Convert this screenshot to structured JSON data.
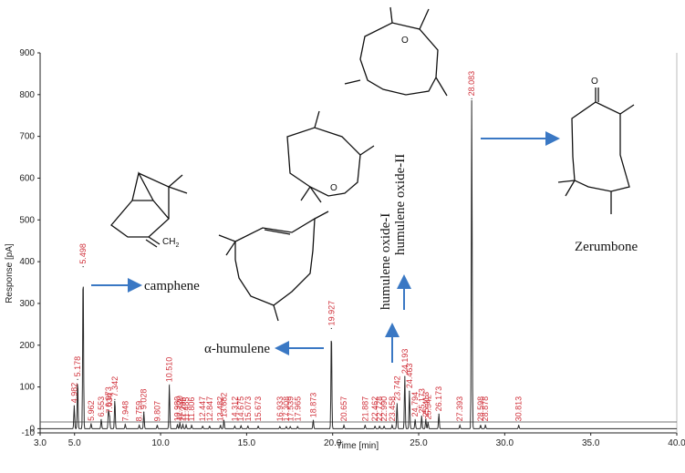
{
  "chart_data": {
    "type": "line",
    "xlabel": "Time [min]",
    "ylabel": "Response [pA]",
    "xlim": [
      3.0,
      40.0
    ],
    "ylim": [
      -10,
      900
    ],
    "x_ticks": [
      "3.0",
      "5.0",
      "10.0",
      "15.0",
      "20.0",
      "25.0",
      "30.0",
      "35.0",
      "40.0"
    ],
    "y_ticks": [
      "-10",
      "0",
      "100",
      "200",
      "300",
      "400",
      "500",
      "600",
      "700",
      "800",
      "900"
    ],
    "baseline": 0,
    "peaks": [
      {
        "t": "4.982",
        "rt": 4.982,
        "h": 55
      },
      {
        "t": "5.178",
        "rt": 5.178,
        "h": 118
      },
      {
        "t": "5.498",
        "rt": 5.498,
        "h": 388
      },
      {
        "t": "5.962",
        "rt": 5.962,
        "h": 12
      },
      {
        "t": "6.553",
        "rt": 6.553,
        "h": 22
      },
      {
        "t": "6.973",
        "rt": 6.973,
        "h": 45
      },
      {
        "t": "7.034",
        "rt": 7.034,
        "h": 30
      },
      {
        "t": "7.342",
        "rt": 7.342,
        "h": 70
      },
      {
        "t": "7.948",
        "rt": 7.948,
        "h": 10
      },
      {
        "t": "8.759",
        "rt": 8.759,
        "h": 8
      },
      {
        "t": "9.028",
        "rt": 9.028,
        "h": 40
      },
      {
        "t": "9.807",
        "rt": 9.807,
        "h": 8
      },
      {
        "t": "10.510",
        "rt": 10.51,
        "h": 105
      },
      {
        "t": "10.980",
        "rt": 10.98,
        "h": 10
      },
      {
        "t": "11.120",
        "rt": 11.12,
        "h": 14
      },
      {
        "t": "11.295",
        "rt": 11.295,
        "h": 10
      },
      {
        "t": "11.485",
        "rt": 11.485,
        "h": 9
      },
      {
        "t": "11.806",
        "rt": 11.806,
        "h": 8
      },
      {
        "t": "12.447",
        "rt": 12.447,
        "h": 6
      },
      {
        "t": "12.847",
        "rt": 12.847,
        "h": 6
      },
      {
        "t": "13.482",
        "rt": 13.482,
        "h": 8
      },
      {
        "t": "13.682",
        "rt": 13.682,
        "h": 20
      },
      {
        "t": "14.312",
        "rt": 14.312,
        "h": 6
      },
      {
        "t": "14.675",
        "rt": 14.675,
        "h": 7
      },
      {
        "t": "15.073",
        "rt": 15.073,
        "h": 6
      },
      {
        "t": "15.673",
        "rt": 15.673,
        "h": 6
      },
      {
        "t": "16.933",
        "rt": 16.933,
        "h": 5
      },
      {
        "t": "17.308",
        "rt": 17.308,
        "h": 5
      },
      {
        "t": "17.539",
        "rt": 17.539,
        "h": 5
      },
      {
        "t": "17.965",
        "rt": 17.965,
        "h": 5
      },
      {
        "t": "18.873",
        "rt": 18.873,
        "h": 20
      },
      {
        "t": "19.927",
        "rt": 19.927,
        "h": 240
      },
      {
        "t": "20.657",
        "rt": 20.657,
        "h": 8
      },
      {
        "t": "21.887",
        "rt": 21.887,
        "h": 8
      },
      {
        "t": "22.462",
        "rt": 22.462,
        "h": 6
      },
      {
        "t": "22.728",
        "rt": 22.728,
        "h": 6
      },
      {
        "t": "22.990",
        "rt": 22.99,
        "h": 6
      },
      {
        "t": "23.458",
        "rt": 23.458,
        "h": 8
      },
      {
        "t": "23.742",
        "rt": 23.742,
        "h": 60
      },
      {
        "t": "24.193",
        "rt": 24.193,
        "h": 125
      },
      {
        "t": "24.463",
        "rt": 24.463,
        "h": 90
      },
      {
        "t": "24.794",
        "rt": 24.794,
        "h": 22
      },
      {
        "t": "25.173",
        "rt": 25.173,
        "h": 30
      },
      {
        "t": "25.413",
        "rt": 25.413,
        "h": 22
      },
      {
        "t": "25.542",
        "rt": 25.542,
        "h": 15
      },
      {
        "t": "26.173",
        "rt": 26.173,
        "h": 35
      },
      {
        "t": "27.393",
        "rt": 27.393,
        "h": 8
      },
      {
        "t": "28.083",
        "rt": 28.083,
        "h": 790
      },
      {
        "t": "28.598",
        "rt": 28.598,
        "h": 8
      },
      {
        "t": "28.878",
        "rt": 28.878,
        "h": 8
      },
      {
        "t": "30.813",
        "rt": 30.813,
        "h": 8
      }
    ],
    "annotations": [
      {
        "id": "camphene",
        "text": "camphene"
      },
      {
        "id": "humulene",
        "text": "α-humulene"
      },
      {
        "id": "oxide1",
        "text": "humulene oxide-I"
      },
      {
        "id": "oxide2",
        "text": "humulene oxide-II"
      },
      {
        "id": "zerumbone",
        "text": "Zerumbone"
      }
    ],
    "structure_labels": {
      "ch2": "CH",
      "ch2_sub": "2",
      "o_epox1": "O",
      "o_epox2": "O",
      "o_keto": "O"
    },
    "colors": {
      "trace": "#2a2a2a",
      "peak_label": "#d0303a",
      "arrow": "#3a78c4",
      "axis": "#222222"
    }
  }
}
